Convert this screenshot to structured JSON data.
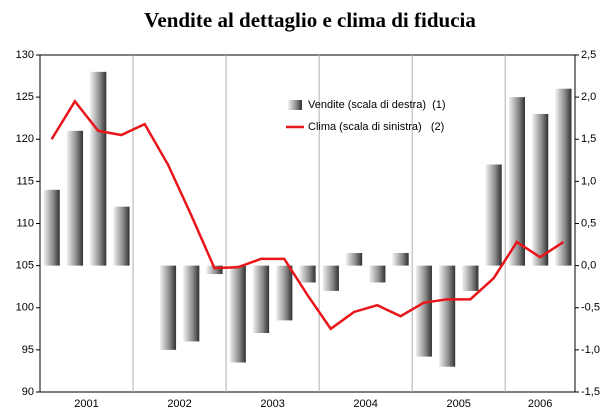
{
  "chart_data": {
    "type": "bar-line",
    "title": "Vendite al dettaglio e clima di fiducia",
    "years": [
      "2001",
      "2002",
      "2003",
      "2004",
      "2005",
      "2006"
    ],
    "series": [
      {
        "name": "Vendite (scala di destra)  (1)",
        "type": "bar",
        "axis": "y2",
        "color": "#707070",
        "values": [
          0.9,
          1.6,
          2.3,
          0.7,
          0,
          -1.0,
          -0.9,
          -0.1,
          -1.15,
          -0.8,
          -0.65,
          -0.2,
          -0.3,
          0.15,
          -0.2,
          0.15,
          -1.08,
          -1.2,
          -0.3,
          1.2,
          2.0,
          1.8,
          2.1
        ]
      },
      {
        "name": "Clima (scala di sinistra)   (2)",
        "type": "line",
        "axis": "y",
        "color": "#e8151b",
        "values": [
          120,
          124.5,
          121,
          120.5,
          121.8,
          117,
          111,
          104.7,
          104.8,
          105.8,
          105.8,
          101.5,
          97.5,
          99.5,
          100.3,
          99,
          100.6,
          101,
          101,
          103.5,
          107.8,
          106,
          107.8
        ]
      }
    ],
    "ylim": [
      90,
      130
    ],
    "yticks": [
      90,
      95,
      100,
      105,
      110,
      115,
      120,
      125,
      130
    ],
    "y2lim": [
      -1.5,
      2.5
    ],
    "y2ticks": [
      {
        "value": -1.5,
        "label": "-1,5"
      },
      {
        "value": -1.0,
        "label": "-1,0"
      },
      {
        "value": -0.5,
        "label": "-0,5"
      },
      {
        "value": 0,
        "label": "0,0"
      },
      {
        "value": 0.5,
        "label": "0,5"
      },
      {
        "value": 1.0,
        "label": "1,0"
      },
      {
        "value": 1.5,
        "label": "1,5"
      },
      {
        "value": 2.0,
        "label": "2,0"
      },
      {
        "value": 2.5,
        "label": "2,5"
      }
    ],
    "grid": "x"
  }
}
